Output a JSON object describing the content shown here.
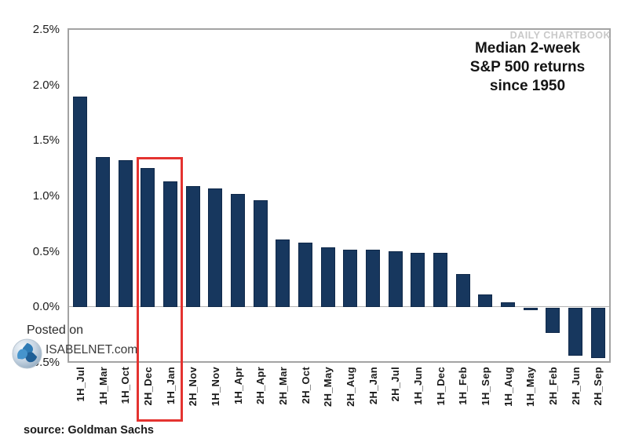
{
  "watermark": "DAILY CHARTBOOK",
  "title": {
    "line1": "Median 2-week",
    "line2": "S&P 500 returns",
    "line3": "since 1950"
  },
  "footer": {
    "posted_on": "Posted on",
    "site": "ISABELNET.com",
    "source": "source: Goldman Sachs"
  },
  "colors": {
    "bar": "#17375e",
    "bar_edge": "#10294a",
    "highlight_box": "#e43330",
    "plot_border": "#a3a3a3",
    "zero_line": "#b3b3b3",
    "watermark": "#c9c9c9"
  },
  "chart_data": {
    "type": "bar",
    "title": "Median 2-week S&P 500 returns since 1950",
    "unit": "percent",
    "categories": [
      "1H_Jul",
      "1H_Mar",
      "1H_Oct",
      "2H_Dec",
      "1H_Jan",
      "2H_Nov",
      "1H_Nov",
      "1H_Apr",
      "2H_Apr",
      "2H_Mar",
      "2H_Oct",
      "2H_May",
      "2H_Aug",
      "2H_Jan",
      "2H_Jul",
      "1H_Jun",
      "1H_Dec",
      "1H_Feb",
      "1H_Sep",
      "1H_Aug",
      "1H_May",
      "2H_Feb",
      "2H_Jun",
      "2H_Sep"
    ],
    "values": [
      1.9,
      1.35,
      1.32,
      1.25,
      1.13,
      1.09,
      1.07,
      1.02,
      0.96,
      0.61,
      0.58,
      0.54,
      0.52,
      0.52,
      0.5,
      0.49,
      0.49,
      0.3,
      0.11,
      0.04,
      -0.02,
      -0.23,
      -0.43,
      -0.45
    ],
    "ylim": [
      -0.5,
      2.5
    ],
    "ytick_labels": [
      "2.5%",
      "2.0%",
      "1.5%",
      "1.0%",
      "0.5%",
      "0.0%",
      "-0.5%"
    ],
    "ytick_values": [
      2.5,
      2.0,
      1.5,
      1.0,
      0.5,
      0.0,
      -0.5
    ],
    "grid": false,
    "legend": null,
    "highlighted_categories": [
      "2H_Dec",
      "1H_Jan"
    ],
    "annotation": "red rectangle highlights the 2H_Dec and 1H_Jan bars and their axis labels"
  }
}
